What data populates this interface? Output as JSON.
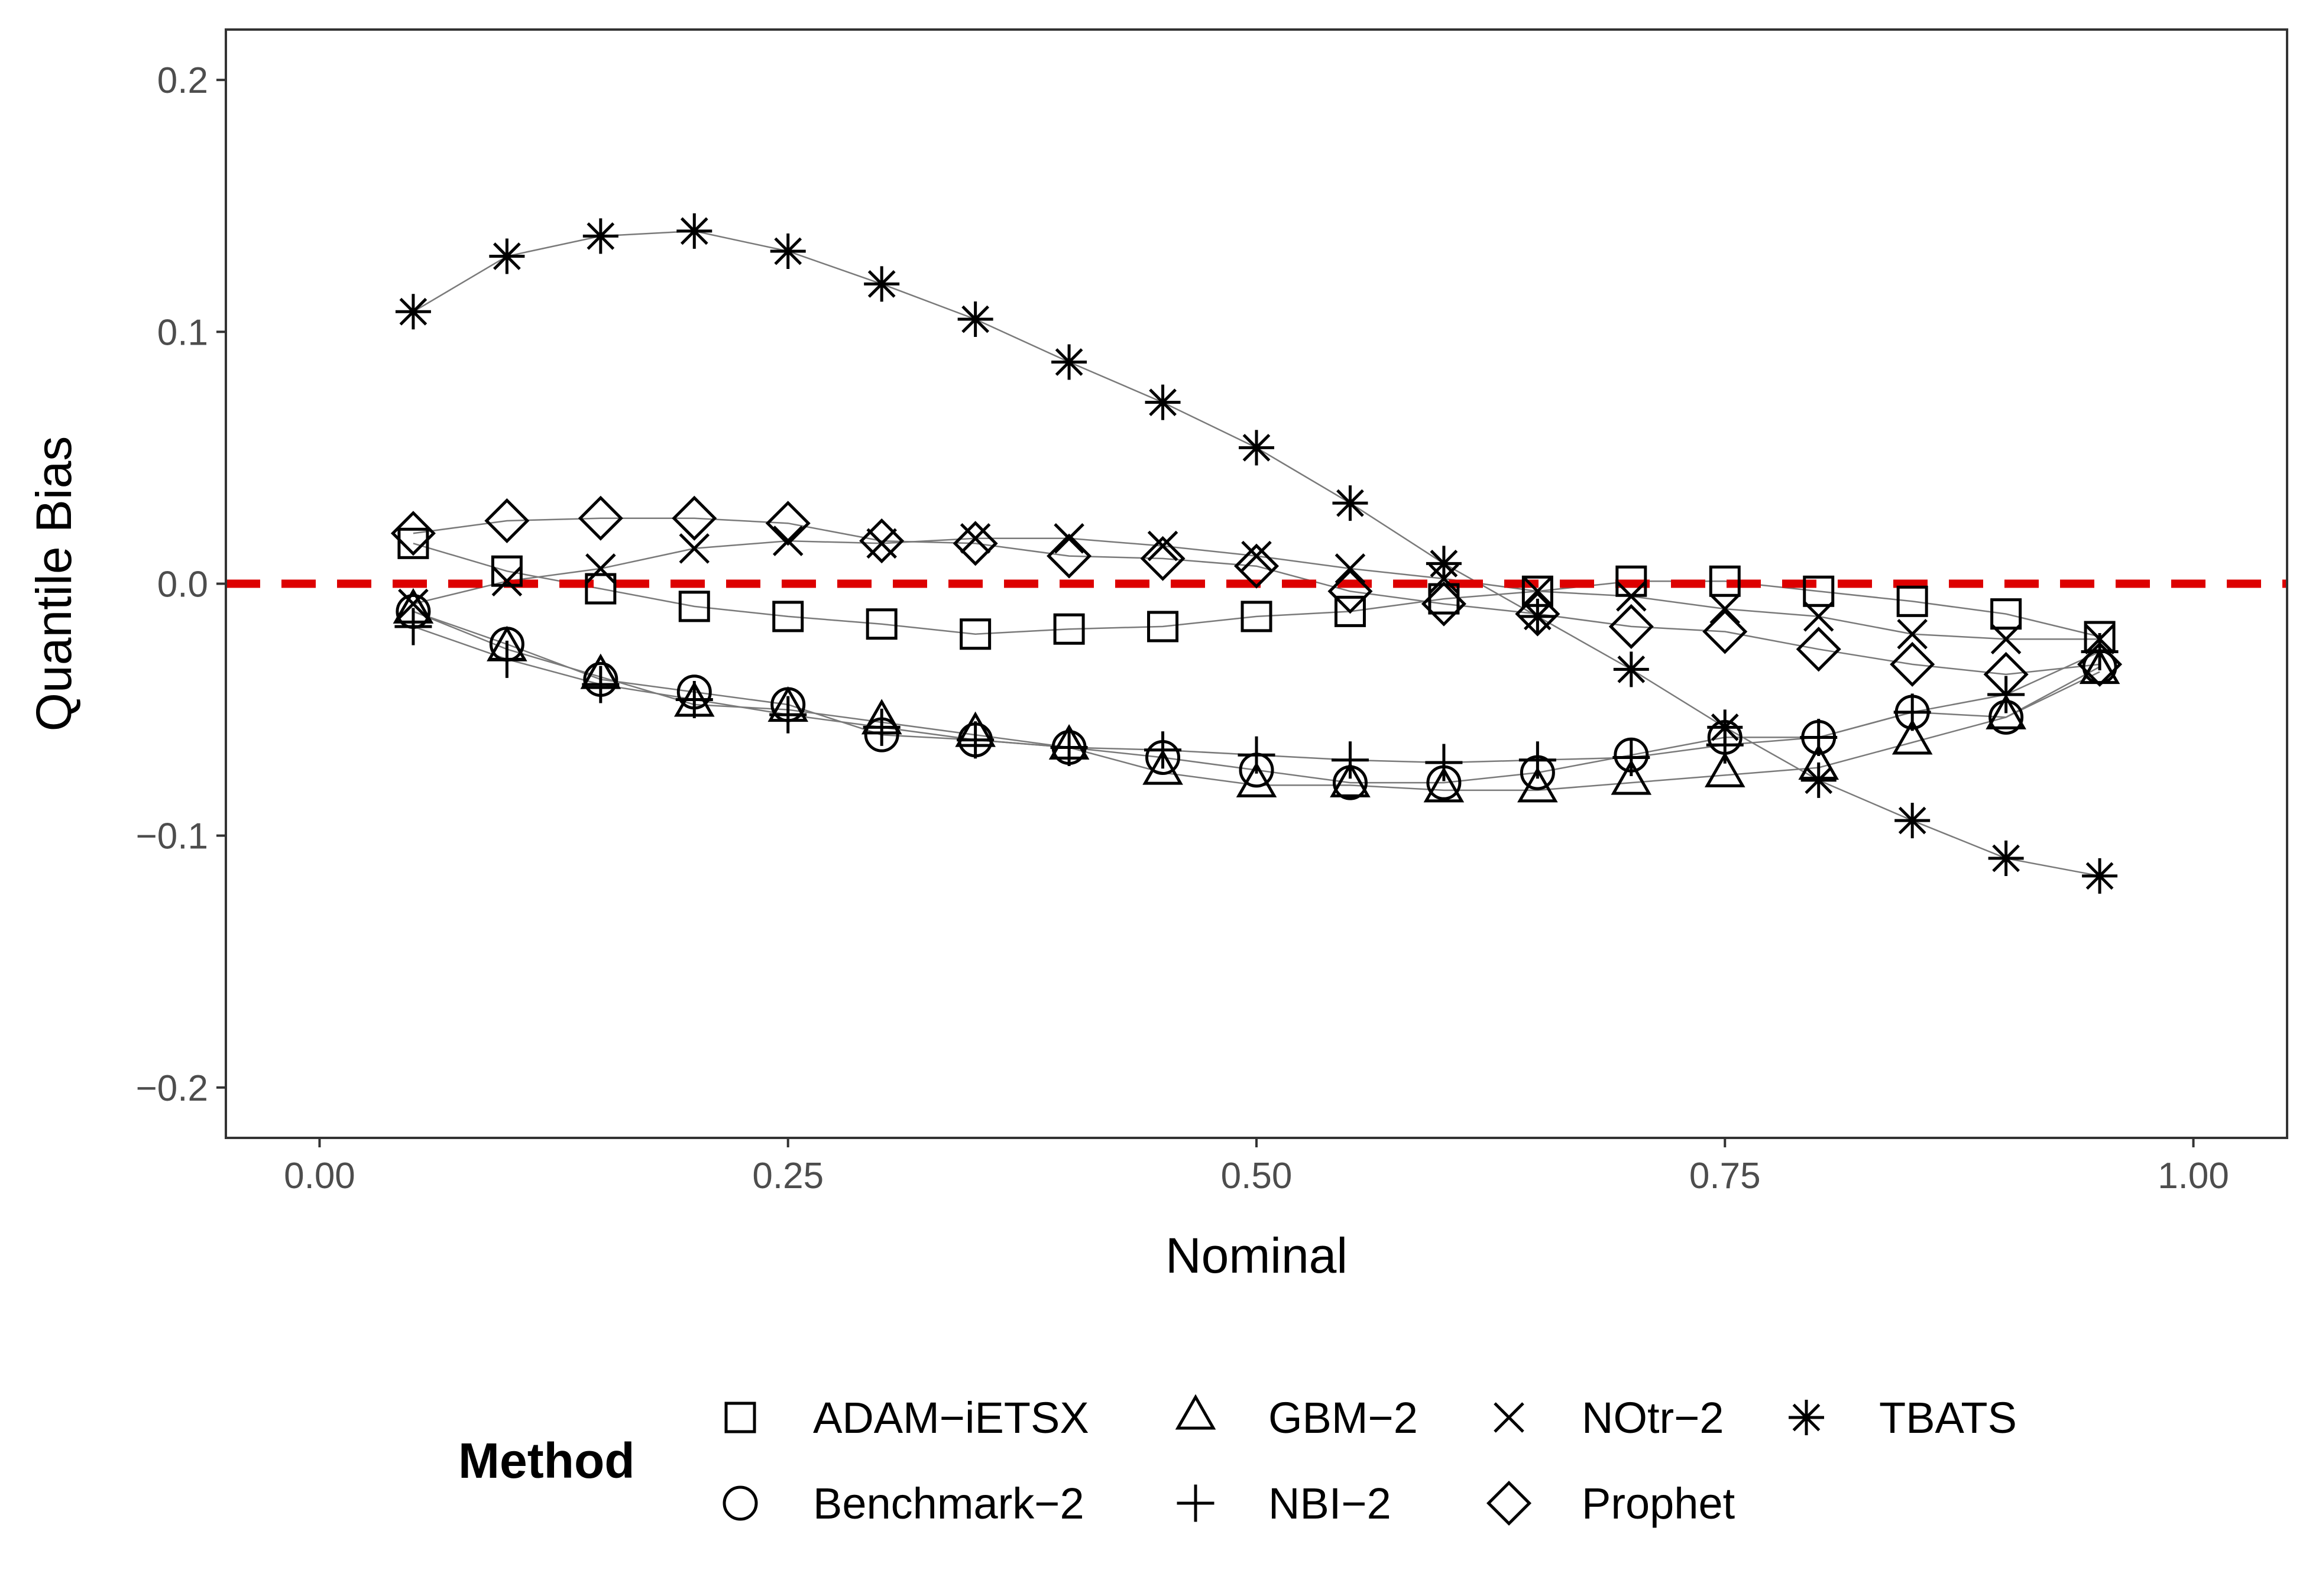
{
  "chart_data": {
    "type": "line",
    "title": "",
    "xlabel": "Nominal",
    "ylabel": "Quantile Bias",
    "xlim": [
      -0.05,
      1.05
    ],
    "ylim": [
      -0.22,
      0.22
    ],
    "xticks": [
      0.0,
      0.25,
      0.5,
      0.75,
      1.0
    ],
    "xtick_labels": [
      "0.00",
      "0.25",
      "0.50",
      "0.75",
      "1.00"
    ],
    "yticks": [
      -0.2,
      -0.1,
      0.0,
      0.1,
      0.2
    ],
    "ytick_labels": [
      "−0.2",
      "−0.1",
      "0.0",
      "0.1",
      "0.2"
    ],
    "grid": false,
    "reference_line": {
      "y": 0,
      "color": "#dd0000",
      "style": "dashed"
    },
    "legend": {
      "title": "Method",
      "position": "bottom"
    },
    "x": [
      0.05,
      0.1,
      0.15,
      0.2,
      0.25,
      0.3,
      0.35,
      0.4,
      0.45,
      0.5,
      0.55,
      0.6,
      0.65,
      0.7,
      0.75,
      0.8,
      0.85,
      0.9,
      0.95
    ],
    "series": [
      {
        "name": "ADAM−iETSX",
        "shape": "square",
        "values": [
          0.016,
          0.005,
          -0.002,
          -0.009,
          -0.013,
          -0.016,
          -0.02,
          -0.018,
          -0.017,
          -0.013,
          -0.011,
          -0.006,
          -0.003,
          0.001,
          0.001,
          -0.003,
          -0.007,
          -0.012,
          -0.021
        ]
      },
      {
        "name": "Benchmark−2",
        "shape": "circle",
        "values": [
          -0.011,
          -0.024,
          -0.038,
          -0.043,
          -0.048,
          -0.06,
          -0.062,
          -0.065,
          -0.069,
          -0.074,
          -0.079,
          -0.079,
          -0.075,
          -0.068,
          -0.061,
          -0.061,
          -0.051,
          -0.053,
          -0.033
        ]
      },
      {
        "name": "GBM−2",
        "shape": "triangle",
        "values": [
          -0.011,
          -0.026,
          -0.037,
          -0.048,
          -0.05,
          -0.055,
          -0.06,
          -0.065,
          -0.075,
          -0.08,
          -0.08,
          -0.082,
          -0.082,
          -0.079,
          -0.076,
          -0.073,
          -0.063,
          -0.053,
          -0.035
        ]
      },
      {
        "name": "NBI−2",
        "shape": "plus",
        "values": [
          -0.017,
          -0.03,
          -0.04,
          -0.046,
          -0.052,
          -0.057,
          -0.062,
          -0.065,
          -0.066,
          -0.068,
          -0.07,
          -0.071,
          -0.07,
          -0.069,
          -0.064,
          -0.061,
          -0.051,
          -0.044,
          -0.027
        ]
      },
      {
        "name": "NOtr−2",
        "shape": "cross",
        "values": [
          -0.008,
          0.001,
          0.006,
          0.014,
          0.017,
          0.016,
          0.018,
          0.018,
          0.015,
          0.011,
          0.006,
          0.002,
          -0.003,
          -0.005,
          -0.01,
          -0.013,
          -0.02,
          -0.022,
          -0.022
        ]
      },
      {
        "name": "Prophet",
        "shape": "diamond",
        "values": [
          0.02,
          0.025,
          0.026,
          0.026,
          0.024,
          0.017,
          0.016,
          0.011,
          0.01,
          0.007,
          -0.003,
          -0.008,
          -0.012,
          -0.017,
          -0.019,
          -0.026,
          -0.032,
          -0.036,
          -0.032
        ]
      },
      {
        "name": "TBATS",
        "shape": "asterisk",
        "values": [
          0.108,
          0.13,
          0.138,
          0.14,
          0.132,
          0.119,
          0.105,
          0.088,
          0.072,
          0.054,
          0.032,
          0.008,
          -0.013,
          -0.034,
          -0.057,
          -0.078,
          -0.094,
          -0.109,
          -0.116
        ]
      }
    ]
  }
}
